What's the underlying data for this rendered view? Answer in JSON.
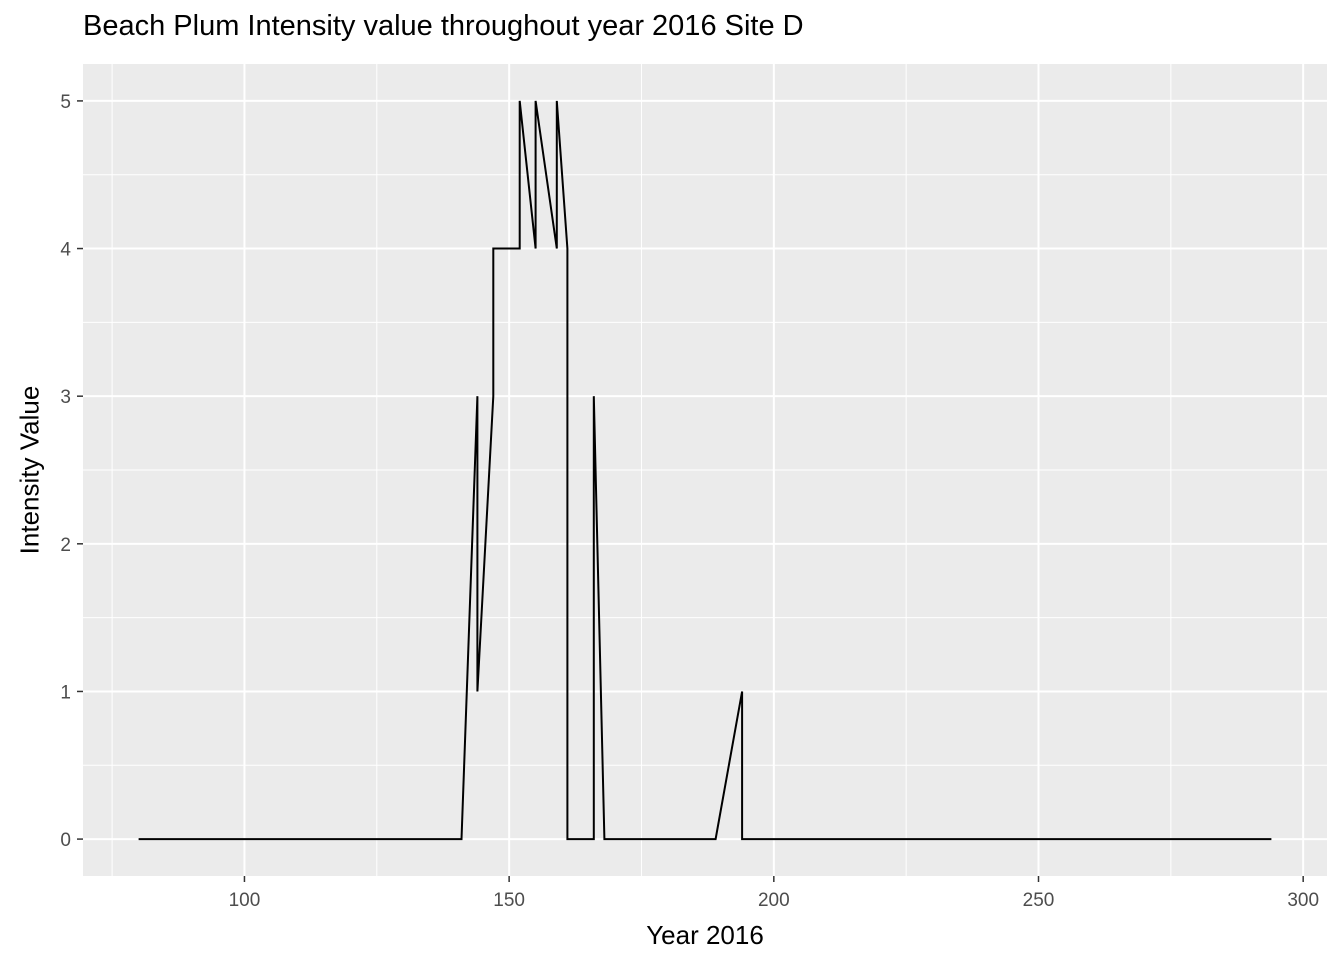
{
  "chart_data": {
    "type": "line",
    "title": "Beach Plum Intensity value throughout year 2016 Site D",
    "xlabel": "Year 2016",
    "ylabel": "Intensity Value",
    "xlim": [
      69.5,
      304.5
    ],
    "ylim": [
      -0.25,
      5.25
    ],
    "x_ticks": [
      100,
      150,
      200,
      250,
      300
    ],
    "x_minor": [
      75,
      125,
      175,
      225,
      275
    ],
    "y_ticks": [
      0,
      1,
      2,
      3,
      4,
      5
    ],
    "y_minor": [
      0.5,
      1.5,
      2.5,
      3.5,
      4.5
    ],
    "grid": true,
    "colors": {
      "panel": "#ebebeb",
      "grid": "#ffffff",
      "line": "#000000",
      "tick_text": "#4d4d4d"
    },
    "series": [
      {
        "x": [
          80,
          141,
          144,
          144,
          147,
          147,
          152,
          152,
          155,
          155,
          159,
          159,
          161,
          161,
          166,
          166,
          168,
          189,
          194,
          194,
          294
        ],
        "values": [
          0,
          0,
          3,
          1,
          3,
          4,
          4,
          5,
          4,
          5,
          4,
          5,
          4,
          0,
          0,
          3,
          0,
          0,
          1,
          0,
          0
        ]
      }
    ]
  }
}
